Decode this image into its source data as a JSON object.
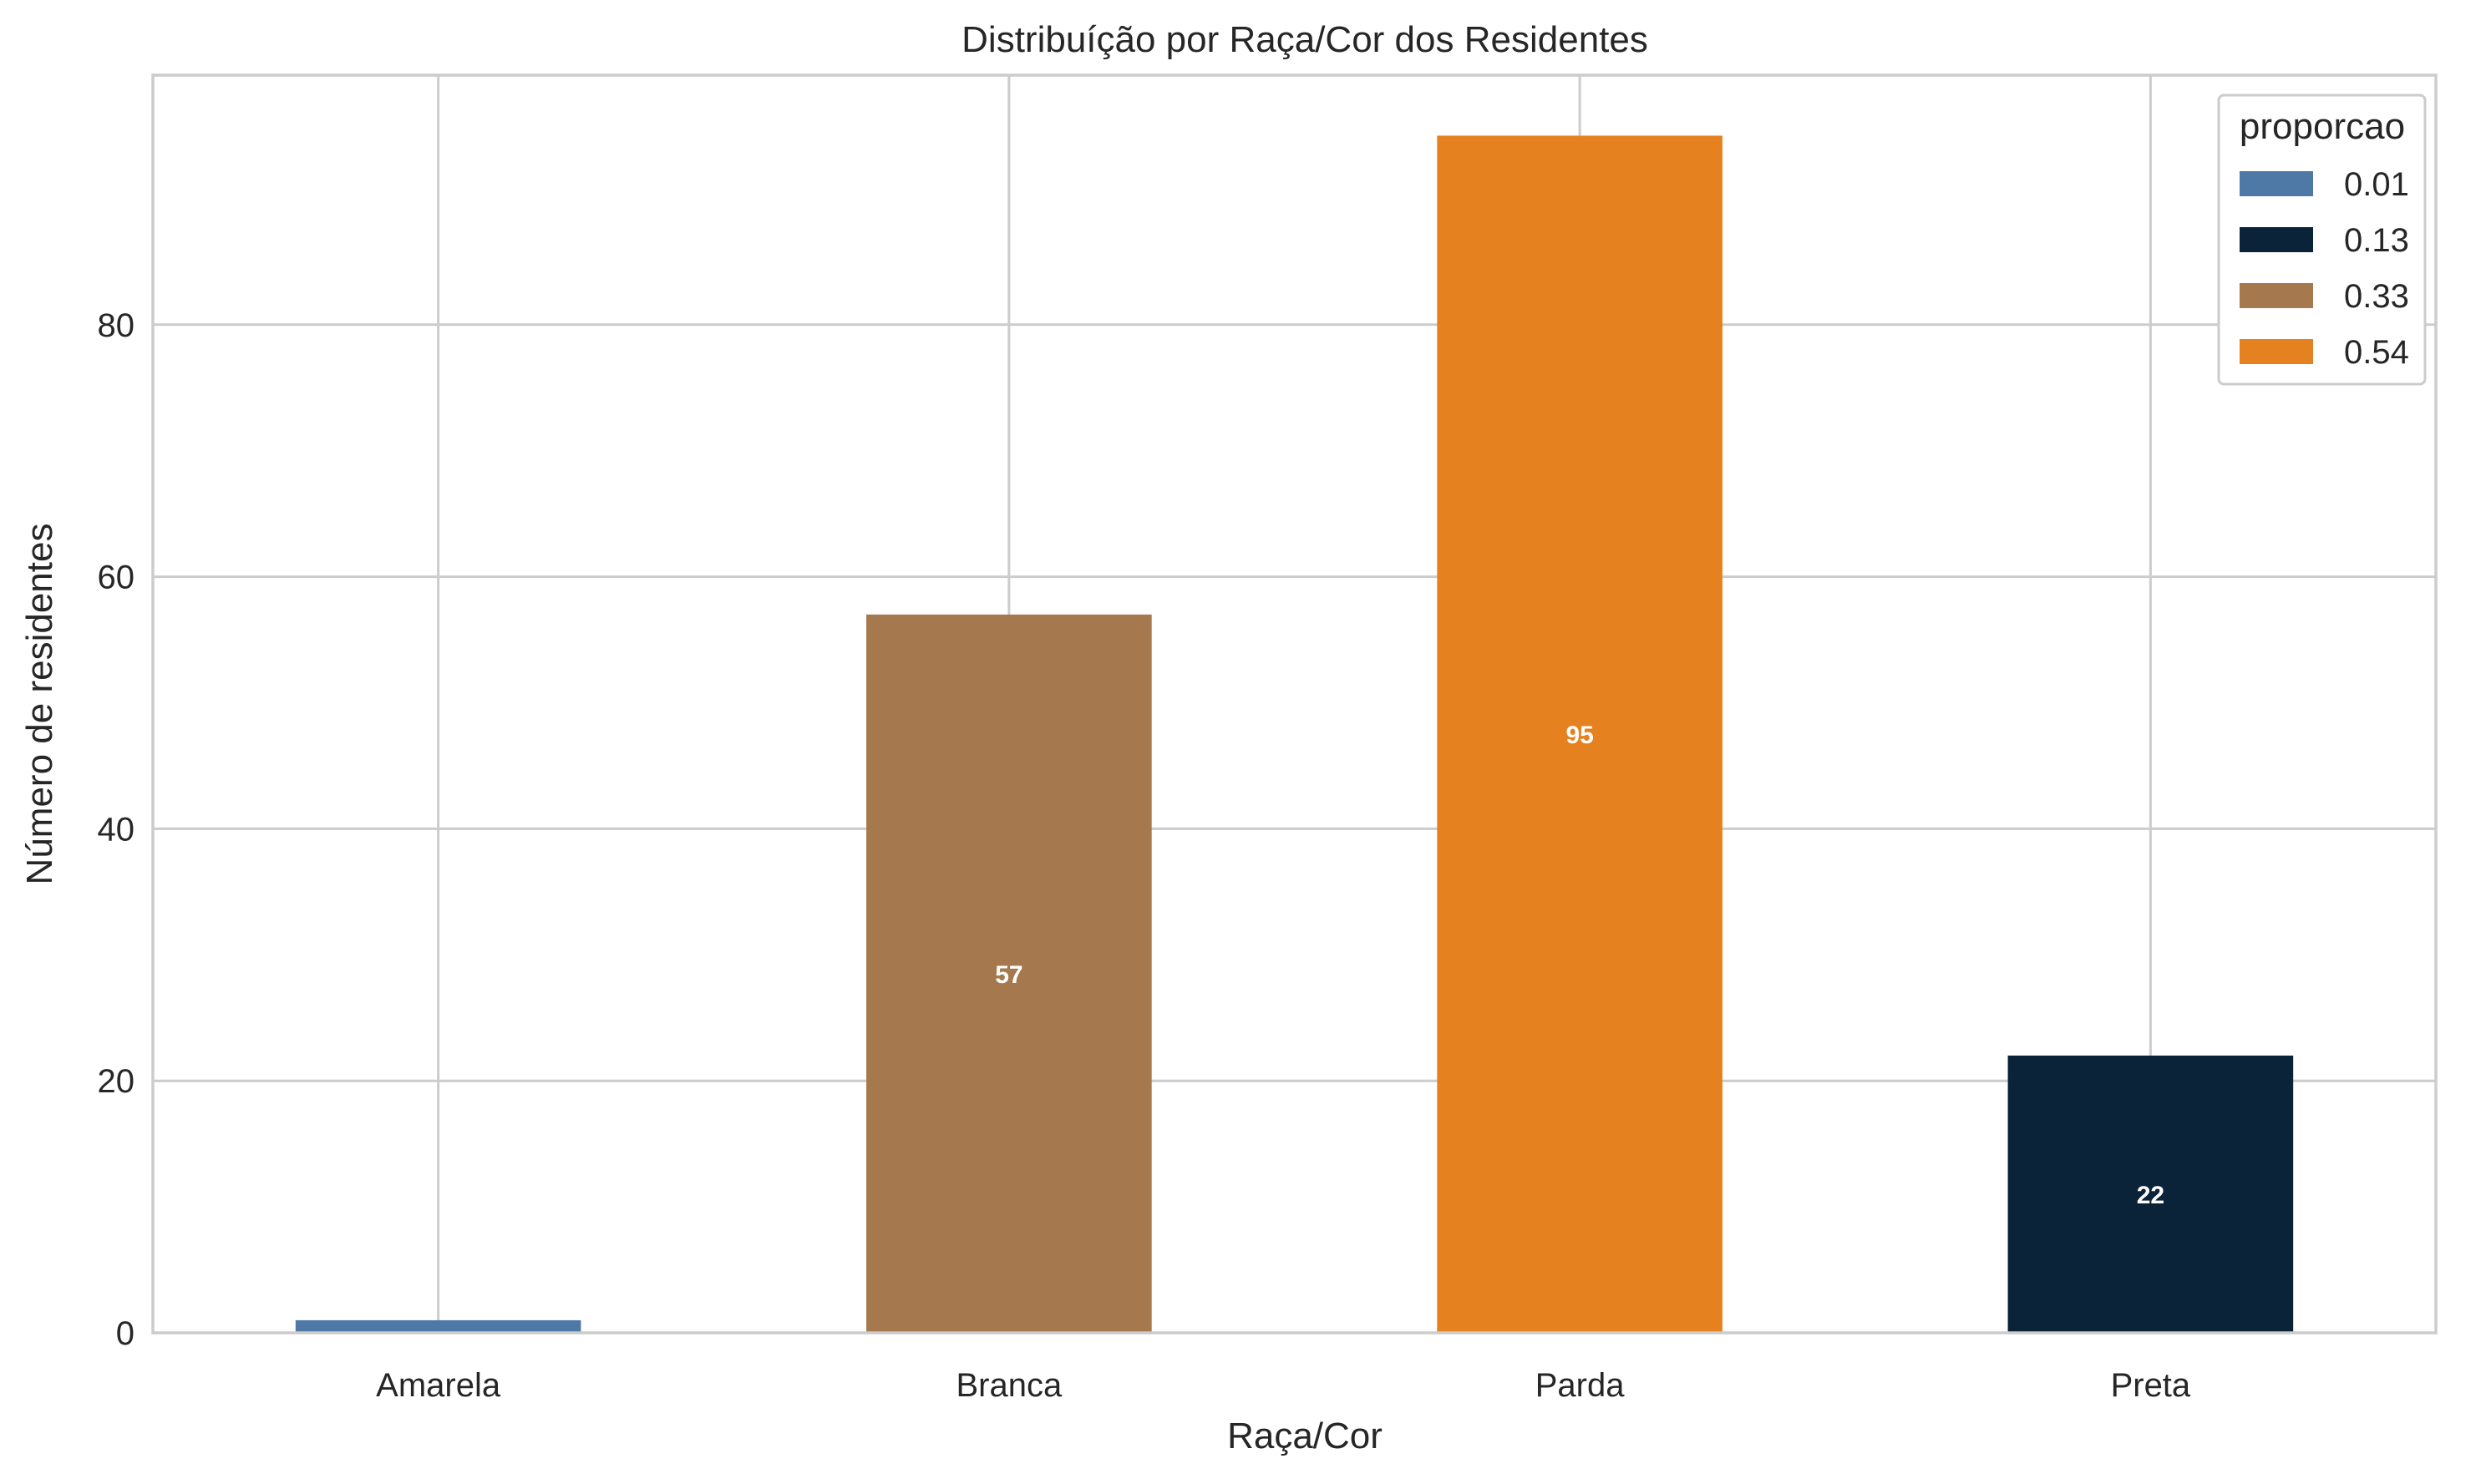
{
  "chart_data": {
    "type": "bar",
    "title": "Distribuíção por Raça/Cor dos Residentes",
    "xlabel": "Raça/Cor",
    "ylabel": "Número de residentes",
    "categories": [
      "Amarela",
      "Branca",
      "Parda",
      "Preta"
    ],
    "values": [
      1,
      57,
      95,
      22
    ],
    "data_labels": [
      "",
      "57",
      "95",
      "22"
    ],
    "bar_legend_keys": [
      "0.01",
      "0.33",
      "0.54",
      "0.13"
    ],
    "ylim": [
      0,
      100
    ],
    "yticks": [
      0,
      20,
      40,
      60,
      80
    ],
    "ytick_labels": [
      "0",
      "20",
      "40",
      "60",
      "80"
    ],
    "grid": true,
    "legend": {
      "title": "proporcao",
      "placement": "top-right",
      "entries": [
        {
          "label": "0.01",
          "color": "#4e79a7"
        },
        {
          "label": "0.13",
          "color": "#0b2338"
        },
        {
          "label": "0.33",
          "color": "#a6784e"
        },
        {
          "label": "0.54",
          "color": "#e6811f"
        }
      ]
    }
  }
}
